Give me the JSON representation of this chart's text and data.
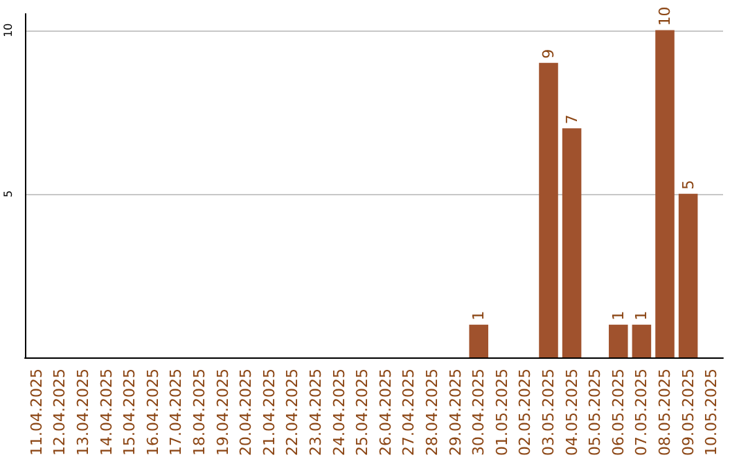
{
  "chart_data": {
    "type": "bar",
    "categories": [
      "11.04.2025",
      "12.04.2025",
      "13.04.2025",
      "14.04.2025",
      "15.04.2025",
      "16.04.2025",
      "17.04.2025",
      "18.04.2025",
      "19.04.2025",
      "20.04.2025",
      "21.04.2025",
      "22.04.2025",
      "23.04.2025",
      "24.04.2025",
      "25.04.2025",
      "26.04.2025",
      "27.04.2025",
      "28.04.2025",
      "29.04.2025",
      "30.04.2025",
      "01.05.2025",
      "02.05.2025",
      "03.05.2025",
      "04.05.2025",
      "05.05.2025",
      "06.05.2025",
      "07.05.2025",
      "08.05.2025",
      "09.05.2025",
      "10.05.2025"
    ],
    "values": [
      0,
      0,
      0,
      0,
      0,
      0,
      0,
      0,
      0,
      0,
      0,
      0,
      0,
      0,
      0,
      0,
      0,
      0,
      0,
      1,
      0,
      0,
      9,
      7,
      0,
      1,
      1,
      10,
      5,
      0
    ],
    "value_labels": [
      null,
      null,
      null,
      null,
      null,
      null,
      null,
      null,
      null,
      null,
      null,
      null,
      null,
      null,
      null,
      null,
      null,
      null,
      null,
      "1",
      null,
      null,
      "9",
      "7",
      null,
      "1",
      "1",
      "10",
      "5",
      null
    ],
    "color": "#a0522d",
    "ylim": [
      0,
      10.5
    ],
    "yticks": [
      5,
      10
    ],
    "grid": "y"
  }
}
